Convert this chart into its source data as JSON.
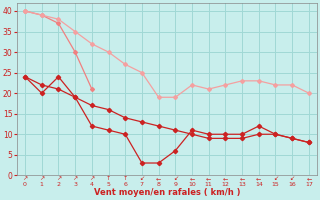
{
  "xlabel": "Vent moyen/en rafales ( km/h )",
  "background_color": "#c8eeec",
  "grid_color": "#a0d8d5",
  "x": [
    0,
    1,
    2,
    3,
    4,
    5,
    6,
    7,
    8,
    9,
    10,
    11,
    12,
    13,
    14,
    15,
    16,
    17
  ],
  "line_upper_pink_y": [
    40,
    39,
    37,
    30,
    21,
    null,
    null,
    null,
    null,
    null,
    null,
    null,
    null,
    null,
    null,
    null,
    null,
    null
  ],
  "line_long_pink_y": [
    40,
    39,
    38,
    35,
    32,
    30,
    27,
    25,
    19,
    19,
    22,
    21,
    22,
    23,
    23,
    22,
    22,
    20
  ],
  "line_red_jagged_y": [
    24,
    20,
    24,
    19,
    12,
    11,
    10,
    3,
    3,
    6,
    11,
    10,
    10,
    10,
    12,
    10,
    9,
    8
  ],
  "line_red_straight_y": [
    24,
    22,
    21,
    19,
    17,
    16,
    14,
    13,
    12,
    11,
    10,
    9,
    9,
    9,
    10,
    10,
    9,
    8
  ],
  "upper_pink_color": "#f08080",
  "long_pink_color": "#f4a0a0",
  "red_color": "#cc2222",
  "straight_red_color": "#cc2222",
  "ylim": [
    0,
    42
  ],
  "yticks": [
    0,
    5,
    10,
    15,
    20,
    25,
    30,
    35,
    40
  ],
  "xticks": [
    0,
    1,
    2,
    3,
    4,
    5,
    6,
    7,
    8,
    9,
    10,
    11,
    12,
    13,
    14,
    15,
    16,
    17
  ],
  "arrows": [
    "↗",
    "↗",
    "↗",
    "↗",
    "↗",
    "↑",
    "↑",
    "↙",
    "←",
    "↙",
    "←",
    "←",
    "←",
    "←",
    "←",
    "↙",
    "↙",
    "←"
  ],
  "tick_color": "#cc2222",
  "xlabel_color": "#cc2222"
}
